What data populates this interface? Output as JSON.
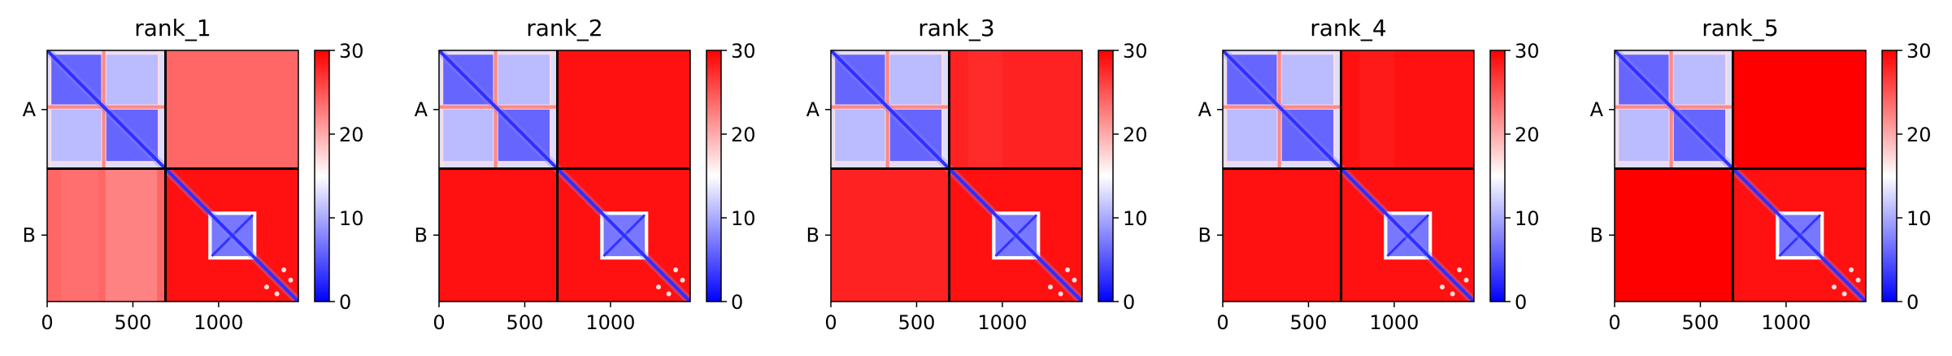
{
  "chart_data": {
    "type": "heatmap",
    "colormap": [
      "#0000ff",
      "#ffffff",
      "#ff0000"
    ],
    "colorbar": {
      "vmin": 0,
      "vmax": 30,
      "ticks": [
        0,
        10,
        20,
        30
      ]
    },
    "x_ticks": [
      0,
      500,
      1000
    ],
    "x_range": [
      0,
      1465
    ],
    "chain_boundary": 690,
    "chains": [
      "A",
      "B"
    ],
    "panels": [
      {
        "title": "rank_1",
        "interchain_level": 24,
        "interchain_stripes": [
          {
            "from": 80,
            "to": 300,
            "level": 23
          },
          {
            "from": 340,
            "to": 640,
            "level": 21
          },
          {
            "from": 690,
            "to": 760,
            "level": 24
          },
          {
            "from": 800,
            "to": 1000,
            "level": 24
          }
        ]
      },
      {
        "title": "rank_2",
        "interchain_level": 29,
        "interchain_stripes": []
      },
      {
        "title": "rank_3",
        "interchain_level": 28,
        "interchain_stripes": [
          {
            "from": 800,
            "to": 1000,
            "level": 27
          }
        ]
      },
      {
        "title": "rank_4",
        "interchain_level": 29,
        "interchain_stripes": [
          {
            "from": 800,
            "to": 1000,
            "level": 28
          }
        ]
      },
      {
        "title": "rank_5",
        "interchain_level": 30,
        "interchain_stripes": []
      }
    ]
  }
}
